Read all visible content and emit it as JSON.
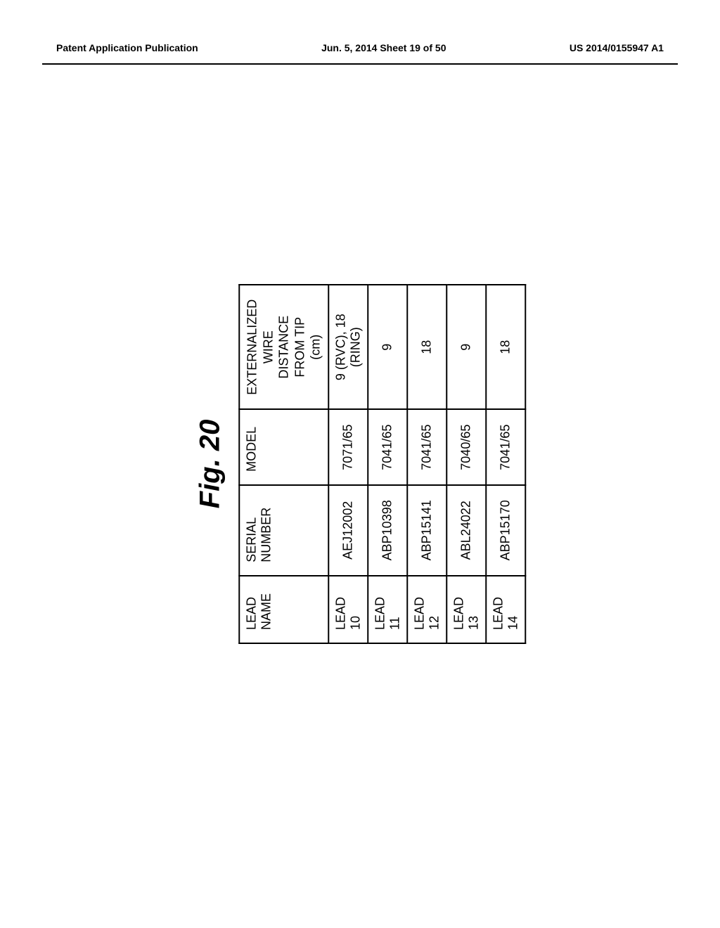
{
  "header": {
    "left": "Patent Application Publication",
    "center": "Jun. 5, 2014  Sheet 19 of 50",
    "right": "US 2014/0155947 A1"
  },
  "figure": {
    "title": "Fig. 20",
    "columns": {
      "lead_name": "LEAD NAME",
      "serial": "SERIAL NUMBER",
      "model": "MODEL",
      "ext_line1": "EXTERNALIZED WIRE",
      "ext_line2": "DISTANCE FROM TIP",
      "ext_line3": "(cm)"
    },
    "rows": [
      {
        "lead": "LEAD 10",
        "serial": "AEJ12002",
        "model": "7071/65",
        "ext": "9 (RVC), 18 (RING)"
      },
      {
        "lead": "LEAD 11",
        "serial": "ABP10398",
        "model": "7041/65",
        "ext": "9"
      },
      {
        "lead": "LEAD 12",
        "serial": "ABP15141",
        "model": "7041/65",
        "ext": "18"
      },
      {
        "lead": "LEAD 13",
        "serial": "ABL24022",
        "model": "7040/65",
        "ext": "9"
      },
      {
        "lead": "LEAD 14",
        "serial": "ABP15170",
        "model": "7041/65",
        "ext": "18"
      }
    ]
  },
  "styling": {
    "page_bg": "#ffffff",
    "text_color": "#000000",
    "border_color": "#000000",
    "header_fontsize": 14,
    "title_fontsize": 40,
    "table_fontsize": 18,
    "border_width": 2,
    "row_height_data": 36,
    "col_widths": {
      "lead": 230,
      "serial": 210,
      "model": 200,
      "ext": 250
    }
  }
}
